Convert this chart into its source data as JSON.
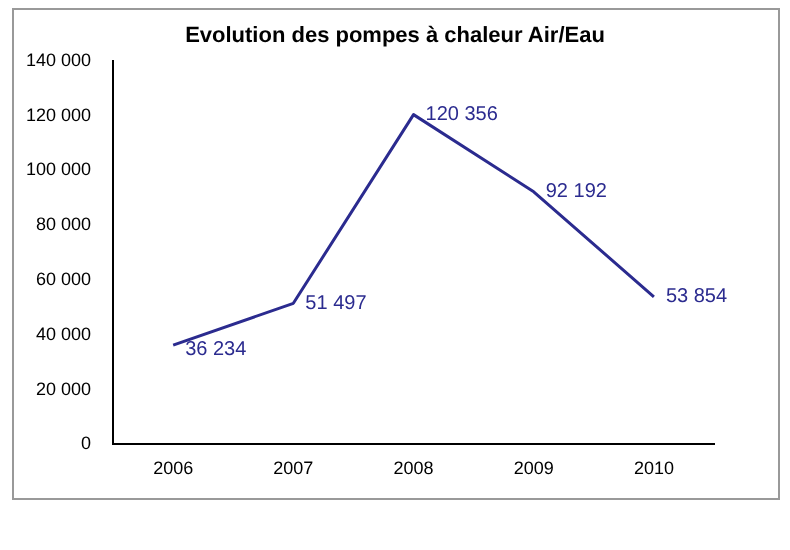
{
  "chart_data": {
    "type": "line",
    "title": "Evolution des pompes à chaleur Air/Eau",
    "categories": [
      "2006",
      "2007",
      "2008",
      "2009",
      "2010"
    ],
    "series": [
      {
        "color": "#2b2b8f",
        "values": [
          36234,
          51497,
          120356,
          92192,
          53854
        ],
        "value_labels": [
          "36 234",
          "51 497",
          "120 356",
          "92 192",
          "53 854"
        ]
      }
    ],
    "ylim": [
      0,
      140000
    ],
    "yticks": [
      {
        "value": 0,
        "label": "0"
      },
      {
        "value": 20000,
        "label": "20 000"
      },
      {
        "value": 40000,
        "label": "40 000"
      },
      {
        "value": 60000,
        "label": "60 000"
      },
      {
        "value": 80000,
        "label": "80 000"
      },
      {
        "value": 100000,
        "label": "100 000"
      },
      {
        "value": 120000,
        "label": "120 000"
      },
      {
        "value": 140000,
        "label": "140 000"
      }
    ],
    "grid": false,
    "legend": false,
    "marker": "none",
    "line_style": "solid"
  }
}
